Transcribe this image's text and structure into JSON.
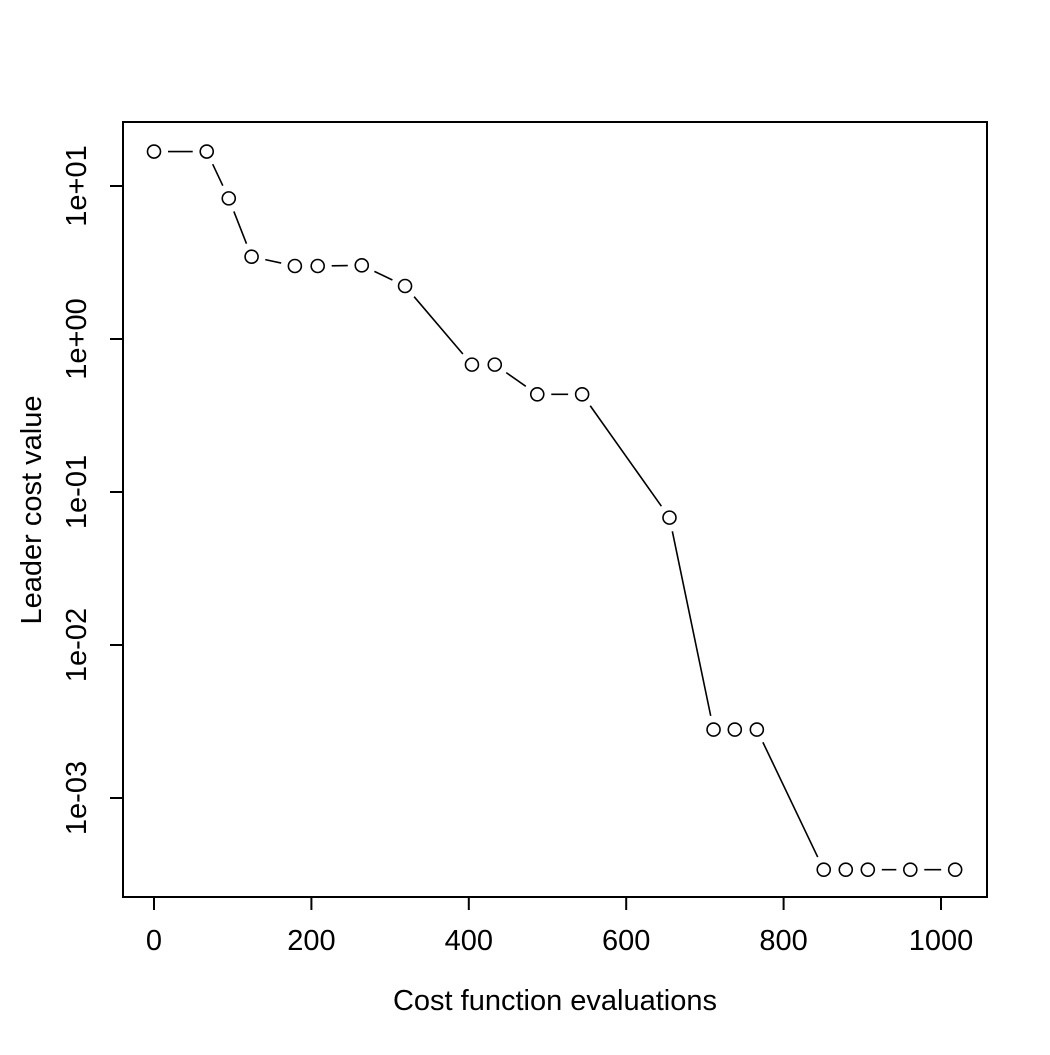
{
  "figure": {
    "background_color": "#ffffff",
    "foreground_color": "#000000"
  },
  "chart_data": {
    "type": "line",
    "subtype": "points-with-gapped-segments (R plot type='b', log y-axis)",
    "title": "",
    "xlabel": "Cost function evaluations",
    "ylabel": "Leader cost value",
    "x": [
      0,
      67,
      95,
      124,
      179,
      208,
      264,
      319,
      404,
      433,
      487,
      544,
      655,
      711,
      738,
      766,
      851,
      879,
      907,
      961,
      1018
    ],
    "y": [
      16.8,
      16.8,
      8.3,
      3.45,
      3.0,
      3.0,
      3.03,
      2.22,
      0.68,
      0.68,
      0.435,
      0.435,
      0.068,
      0.0028,
      0.0028,
      0.0028,
      0.00034,
      0.00034,
      0.00034,
      0.00034,
      0.00034
    ],
    "x_ticks": [
      0,
      200,
      400,
      600,
      800,
      1000
    ],
    "y_ticks": [
      "1e+01",
      "1e+00",
      "1e-01",
      "1e-02",
      "1e-03"
    ],
    "y_tick_values": [
      10,
      1,
      0.1,
      0.01,
      0.001
    ],
    "y_scale": "log",
    "xlim": [
      -39,
      1058
    ],
    "ylim": [
      0.00022,
      26
    ],
    "grid": false,
    "legend": null,
    "marker": "open-circle",
    "marker_color": "#000000",
    "line_color": "#000000"
  }
}
